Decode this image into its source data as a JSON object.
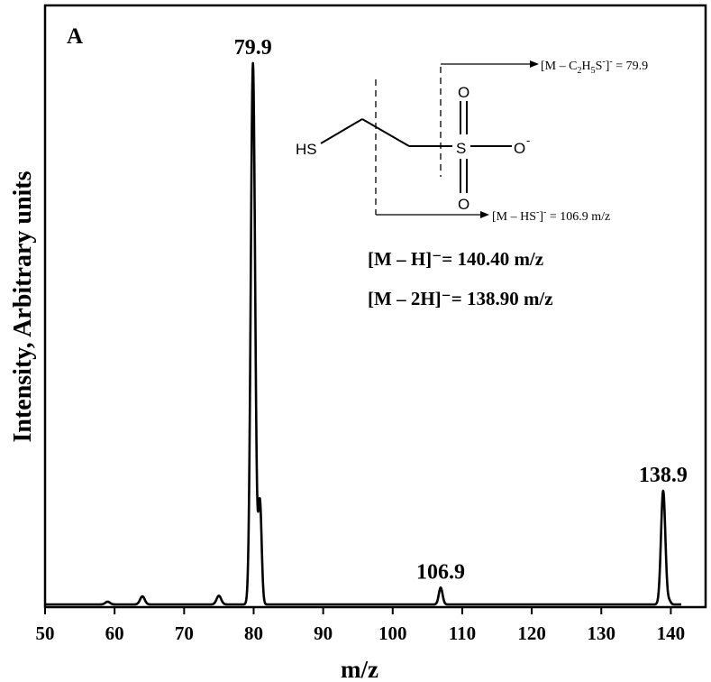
{
  "chart_data": {
    "type": "line",
    "panel_label": "A",
    "xlabel": "m/z",
    "ylabel": "Intensity, Arbitrary units",
    "xlim": [
      50,
      145
    ],
    "ylim": [
      0,
      100
    ],
    "x_ticks": [
      50,
      60,
      70,
      80,
      90,
      100,
      110,
      120,
      130,
      140
    ],
    "y_ticks_shown": false,
    "grid": false,
    "peaks": [
      {
        "mz": 59,
        "intensity": 0.5,
        "width": 0.8
      },
      {
        "mz": 64,
        "intensity": 1.5,
        "width": 0.8
      },
      {
        "mz": 75,
        "intensity": 1.6,
        "width": 0.8
      },
      {
        "mz": 79.9,
        "intensity": 100,
        "width": 0.75
      },
      {
        "mz": 80.9,
        "intensity": 19,
        "width": 0.6
      },
      {
        "mz": 106.9,
        "intensity": 3.1,
        "width": 0.65
      },
      {
        "mz": 138.9,
        "intensity": 21,
        "width": 0.75
      },
      {
        "mz": 139.8,
        "intensity": 0.6,
        "width": 0.5
      }
    ],
    "peak_labels": [
      {
        "mz": 79.9,
        "text": "79.9"
      },
      {
        "mz": 106.9,
        "text": "106.9"
      },
      {
        "mz": 138.9,
        "text": "138.9"
      }
    ],
    "annotations": {
      "line1": "[M – H]⁻= 140.40 m/z",
      "line2": "[M – 2H]⁻= 138.90 m/z"
    },
    "structure": {
      "hs_label": "HS",
      "s_label": "S",
      "o_top": "O",
      "o_bottom": "O",
      "o_right": "O",
      "o_charge": "-",
      "fragment1_prefix": "[M – C",
      "fragment1_sub1": "2",
      "fragment1_mid": "H",
      "fragment1_sub2": "5",
      "fragment1_s": "S",
      "fragment1_sup": "-",
      "fragment1_close": "]",
      "fragment1_sup2": "-",
      "fragment1_value": " = 79.9",
      "fragment2_prefix": "[M – HS",
      "fragment2_sup": "-",
      "fragment2_close": "]",
      "fragment2_sup2": "-",
      "fragment2_value": " = 106.9 m/z"
    }
  }
}
